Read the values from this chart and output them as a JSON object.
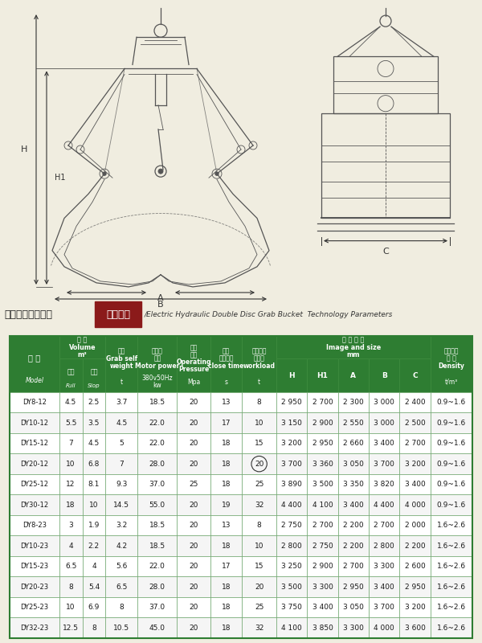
{
  "title_cn": "电动液压双瓣抓斗",
  "title_highlight": "技术参数",
  "title_en": "/Electric Hydraulic Double Disc Grab Bucket  Technology Parameters",
  "header_bg": "#2e7d32",
  "header_fg": "#ffffff",
  "alt_row_bg": "#f5f5f5",
  "white_row_bg": "#ffffff",
  "table_border": "#5a9a5a",
  "bg_color": "#f0ede0",
  "rows": [
    [
      "DY8-12",
      "4.5",
      "2.5",
      "3.7",
      "18.5",
      "20",
      "13",
      "8",
      "2 950",
      "2 700",
      "2 300",
      "3 000",
      "2 400",
      "0.9~1.6"
    ],
    [
      "DY10-12",
      "5.5",
      "3.5",
      "4.5",
      "22.0",
      "20",
      "17",
      "10",
      "3 150",
      "2 900",
      "2 550",
      "3 000",
      "2 500",
      "0.9~1.6"
    ],
    [
      "DY15-12",
      "7",
      "4.5",
      "5",
      "22.0",
      "20",
      "18",
      "15",
      "3 200",
      "2 950",
      "2 660",
      "3 400",
      "2 700",
      "0.9~1.6"
    ],
    [
      "DY20-12",
      "10",
      "6.8",
      "7",
      "28.0",
      "20",
      "18",
      "20",
      "3 700",
      "3 360",
      "3 050",
      "3 700",
      "3 200",
      "0.9~1.6"
    ],
    [
      "DY25-12",
      "12",
      "8.1",
      "9.3",
      "37.0",
      "25",
      "18",
      "25",
      "3 890",
      "3 500",
      "3 350",
      "3 820",
      "3 400",
      "0.9~1.6"
    ],
    [
      "DY30-12",
      "18",
      "10",
      "14.5",
      "55.0",
      "20",
      "19",
      "32",
      "4 400",
      "4 100",
      "3 400",
      "4 400",
      "4 000",
      "0.9~1.6"
    ],
    [
      "DY8-23",
      "3",
      "1.9",
      "3.2",
      "18.5",
      "20",
      "13",
      "8",
      "2 750",
      "2 700",
      "2 200",
      "2 700",
      "2 000",
      "1.6~2.6"
    ],
    [
      "DY10-23",
      "4",
      "2.2",
      "4.2",
      "18.5",
      "20",
      "18",
      "10",
      "2 800",
      "2 750",
      "2 200",
      "2 800",
      "2 200",
      "1.6~2.6"
    ],
    [
      "DY15-23",
      "6.5",
      "4",
      "5.6",
      "22.0",
      "20",
      "17",
      "15",
      "3 250",
      "2 900",
      "2 700",
      "3 300",
      "2 600",
      "1.6~2.6"
    ],
    [
      "DY20-23",
      "8",
      "5.4",
      "6.5",
      "28.0",
      "20",
      "18",
      "20",
      "3 500",
      "3 300",
      "2 950",
      "3 400",
      "2 950",
      "1.6~2.6"
    ],
    [
      "DY25-23",
      "10",
      "6.9",
      "8",
      "37.0",
      "20",
      "18",
      "25",
      "3 750",
      "3 400",
      "3 050",
      "3 700",
      "3 200",
      "1.6~2.6"
    ],
    [
      "DY32-23",
      "12.5",
      "8",
      "10.5",
      "45.0",
      "20",
      "18",
      "32",
      "4 100",
      "3 850",
      "3 300",
      "4 000",
      "3 600",
      "1.6~2.6"
    ]
  ]
}
